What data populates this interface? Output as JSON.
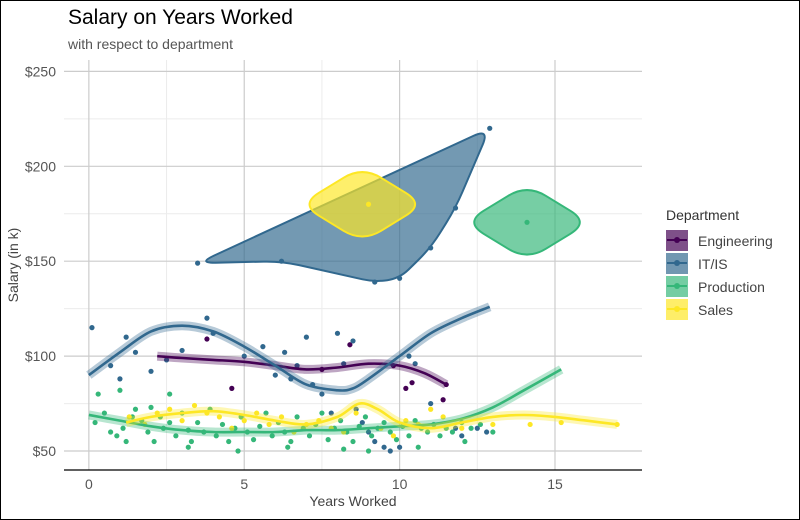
{
  "chart_data": {
    "type": "scatter",
    "title": "Salary on Years Worked",
    "subtitle": "with respect to department",
    "xlabel": "Years Worked",
    "ylabel": "Salary (in k)",
    "xlim": [
      -0.8,
      17.8
    ],
    "ylim": [
      40,
      256
    ],
    "x_ticks": [
      0,
      5,
      10,
      15
    ],
    "x_tick_labels": [
      "0",
      "5",
      "10",
      "15"
    ],
    "y_ticks": [
      50,
      100,
      150,
      200,
      250
    ],
    "y_tick_labels": [
      "$50",
      "$100",
      "$150",
      "$200",
      "$250"
    ],
    "grid": true,
    "legend": {
      "title": "Department",
      "position": "right",
      "entries": [
        "Engineering",
        "IT/IS",
        "Production",
        "Sales"
      ]
    },
    "series": [
      {
        "name": "Engineering",
        "color": "#440154",
        "points": [
          [
            3.8,
            109
          ],
          [
            4.6,
            83
          ],
          [
            7.5,
            93
          ],
          [
            8.4,
            106
          ],
          [
            9.8,
            95
          ],
          [
            10.4,
            86
          ],
          [
            11.4,
            77
          ],
          [
            11.5,
            85
          ],
          [
            10.2,
            83
          ]
        ],
        "smooth": [
          [
            2.2,
            100
          ],
          [
            3,
            99
          ],
          [
            4,
            98
          ],
          [
            5,
            97
          ],
          [
            6,
            95
          ],
          [
            7,
            93
          ],
          [
            8,
            94
          ],
          [
            9,
            96
          ],
          [
            10,
            95
          ],
          [
            10.8,
            91
          ],
          [
            11.5,
            85
          ]
        ],
        "hull": []
      },
      {
        "name": "IT/IS",
        "color": "#31688e",
        "points": [
          [
            0.1,
            115
          ],
          [
            1.2,
            110
          ],
          [
            1.5,
            102
          ],
          [
            2,
            92
          ],
          [
            2.5,
            98
          ],
          [
            3,
            103
          ],
          [
            3.8,
            120
          ],
          [
            4,
            112
          ],
          [
            5,
            100
          ],
          [
            5.6,
            105
          ],
          [
            6,
            90
          ],
          [
            6.3,
            102
          ],
          [
            6.5,
            88
          ],
          [
            6.7,
            95
          ],
          [
            7,
            110
          ],
          [
            7.2,
            85
          ],
          [
            7.5,
            80
          ],
          [
            7.8,
            70
          ],
          [
            8,
            112
          ],
          [
            8.2,
            96
          ],
          [
            8.5,
            108
          ],
          [
            8.6,
            72
          ],
          [
            8.8,
            65
          ],
          [
            9,
            60
          ],
          [
            9.2,
            55
          ],
          [
            9.5,
            52
          ],
          [
            9.7,
            50
          ],
          [
            10,
            52
          ],
          [
            10.3,
            100
          ],
          [
            10.5,
            96
          ],
          [
            11,
            75
          ],
          [
            11.8,
            62
          ],
          [
            12,
            58
          ],
          [
            12.5,
            62
          ],
          [
            12.8,
            60
          ],
          [
            1,
            88
          ],
          [
            0.7,
            95
          ],
          [
            3.5,
            149
          ],
          [
            6.2,
            150
          ],
          [
            9.2,
            139
          ],
          [
            10,
            141
          ],
          [
            11,
            157
          ],
          [
            11.8,
            178
          ],
          [
            12.9,
            220
          ]
        ],
        "smooth": [
          [
            0,
            90
          ],
          [
            1,
            102
          ],
          [
            2,
            113
          ],
          [
            3,
            116
          ],
          [
            4,
            113
          ],
          [
            5,
            105
          ],
          [
            6,
            95
          ],
          [
            7,
            85
          ],
          [
            8,
            82
          ],
          [
            8.5,
            83
          ],
          [
            9,
            88
          ],
          [
            10,
            100
          ],
          [
            11,
            112
          ],
          [
            12,
            120
          ],
          [
            12.9,
            126
          ]
        ],
        "hull": [
          [
            3.5,
            149
          ],
          [
            12.9,
            220
          ],
          [
            11.8,
            178
          ],
          [
            11,
            157
          ],
          [
            10,
            141
          ],
          [
            9.2,
            139
          ],
          [
            6.2,
            150
          ]
        ]
      },
      {
        "name": "Production",
        "color": "#35b779",
        "points": [
          [
            0.2,
            65
          ],
          [
            0.3,
            80
          ],
          [
            0.5,
            70
          ],
          [
            0.7,
            60
          ],
          [
            0.9,
            58
          ],
          [
            1.1,
            62
          ],
          [
            1.2,
            55
          ],
          [
            1.4,
            68
          ],
          [
            1.5,
            72
          ],
          [
            1.7,
            66
          ],
          [
            1.9,
            60
          ],
          [
            2,
            73
          ],
          [
            2.1,
            55
          ],
          [
            2.3,
            68
          ],
          [
            2.4,
            62
          ],
          [
            2.6,
            65
          ],
          [
            2.8,
            58
          ],
          [
            3,
            70
          ],
          [
            3.2,
            61
          ],
          [
            3.3,
            55
          ],
          [
            3.5,
            65
          ],
          [
            3.7,
            60
          ],
          [
            3.9,
            72
          ],
          [
            4.1,
            58
          ],
          [
            4.3,
            64
          ],
          [
            4.5,
            55
          ],
          [
            4.7,
            62
          ],
          [
            4.9,
            68
          ],
          [
            5.1,
            60
          ],
          [
            5.3,
            56
          ],
          [
            5.5,
            63
          ],
          [
            5.7,
            70
          ],
          [
            5.9,
            58
          ],
          [
            6.1,
            65
          ],
          [
            6.3,
            60
          ],
          [
            6.5,
            55
          ],
          [
            6.7,
            68
          ],
          [
            6.9,
            62
          ],
          [
            7.1,
            58
          ],
          [
            7.3,
            64
          ],
          [
            7.5,
            70
          ],
          [
            7.7,
            56
          ],
          [
            7.9,
            62
          ],
          [
            8.1,
            66
          ],
          [
            8.3,
            60
          ],
          [
            8.5,
            55
          ],
          [
            8.7,
            63
          ],
          [
            8.9,
            68
          ],
          [
            9.1,
            58
          ],
          [
            9.3,
            62
          ],
          [
            9.5,
            65
          ],
          [
            9.7,
            60
          ],
          [
            9.9,
            56
          ],
          [
            10.1,
            63
          ],
          [
            10.3,
            58
          ],
          [
            10.5,
            66
          ],
          [
            10.7,
            62
          ],
          [
            10.9,
            60
          ],
          [
            11.1,
            64
          ],
          [
            11.3,
            58
          ],
          [
            11.5,
            62
          ],
          [
            11.7,
            60
          ],
          [
            12,
            65
          ],
          [
            12.3,
            62
          ],
          [
            12.6,
            64
          ],
          [
            13,
            60
          ],
          [
            1,
            82
          ],
          [
            2.6,
            80
          ],
          [
            3.2,
            52
          ],
          [
            4.8,
            50
          ],
          [
            6.4,
            52
          ],
          [
            8.2,
            51
          ],
          [
            9,
            50
          ],
          [
            10.6,
            52
          ],
          [
            12.1,
            55
          ],
          [
            14.1,
            170.5
          ]
        ],
        "smooth": [
          [
            0,
            69
          ],
          [
            1,
            66
          ],
          [
            2,
            63
          ],
          [
            3,
            61
          ],
          [
            4,
            60
          ],
          [
            5,
            60
          ],
          [
            6,
            60
          ],
          [
            7,
            61
          ],
          [
            8,
            61
          ],
          [
            9,
            62
          ],
          [
            10,
            63
          ],
          [
            11,
            64
          ],
          [
            12,
            67
          ],
          [
            13,
            73
          ],
          [
            14,
            82
          ],
          [
            15.2,
            93
          ]
        ],
        "hull": []
      },
      {
        "name": "Sales",
        "color": "#fde725",
        "points": [
          [
            1.3,
            68
          ],
          [
            1.8,
            64
          ],
          [
            2.2,
            70
          ],
          [
            2.6,
            72
          ],
          [
            3,
            66
          ],
          [
            3.4,
            74
          ],
          [
            3.8,
            70
          ],
          [
            4.2,
            68
          ],
          [
            4.6,
            62
          ],
          [
            5,
            66
          ],
          [
            5.4,
            70
          ],
          [
            5.8,
            64
          ],
          [
            6.2,
            68
          ],
          [
            6.6,
            60
          ],
          [
            7,
            64
          ],
          [
            7.4,
            66
          ],
          [
            7.8,
            62
          ],
          [
            8.2,
            60
          ],
          [
            8.6,
            70
          ],
          [
            9,
            180
          ],
          [
            9.4,
            62
          ],
          [
            9.8,
            58
          ],
          [
            10.2,
            66
          ],
          [
            10.6,
            64
          ],
          [
            11,
            72
          ],
          [
            11.4,
            68
          ],
          [
            12,
            62
          ],
          [
            13,
            64
          ],
          [
            14.2,
            64
          ],
          [
            15.2,
            65
          ],
          [
            17,
            64
          ]
        ],
        "smooth": [
          [
            1.2,
            65
          ],
          [
            2,
            68
          ],
          [
            3,
            70
          ],
          [
            4,
            71
          ],
          [
            5,
            69
          ],
          [
            6,
            66
          ],
          [
            7,
            64
          ],
          [
            8,
            68
          ],
          [
            8.7,
            75
          ],
          [
            9.3,
            72
          ],
          [
            10,
            65
          ],
          [
            11,
            62
          ],
          [
            12,
            65
          ],
          [
            13,
            68
          ],
          [
            14,
            69
          ],
          [
            15,
            68
          ],
          [
            16,
            66
          ],
          [
            17,
            64
          ]
        ],
        "hull": []
      }
    ],
    "blobs": [
      {
        "series": "Sales",
        "center": [
          8.8,
          180
        ],
        "dx": 2.0,
        "dy": 20
      },
      {
        "series": "Production",
        "center": [
          14.1,
          170.5
        ],
        "dx": 2.0,
        "dy": 20
      }
    ]
  }
}
